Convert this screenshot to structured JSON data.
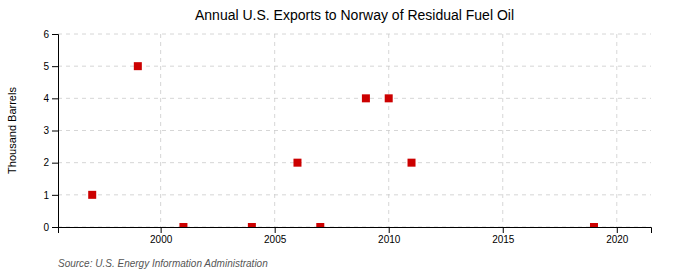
{
  "chart_data": {
    "type": "scatter",
    "title": "Annual U.S. Exports to Norway of Residual Fuel Oil",
    "ylabel": "Thousand Barrels",
    "annotations": [
      "Source: U.S. Energy Information Administration"
    ],
    "x": [
      1997,
      1999,
      2001,
      2004,
      2006,
      2007,
      2009,
      2010,
      2011,
      2019
    ],
    "values": [
      1,
      5,
      0,
      0,
      2,
      0,
      4,
      4,
      2,
      0
    ],
    "color": "#cc0000",
    "marker": "square",
    "xlim": [
      1995.5,
      2021.5
    ],
    "ylim": [
      0,
      6
    ],
    "xticks": [
      2000,
      2005,
      2010,
      2015,
      2020
    ],
    "yticks": [
      0,
      1,
      2,
      3,
      4,
      5,
      6
    ],
    "grid": true
  }
}
